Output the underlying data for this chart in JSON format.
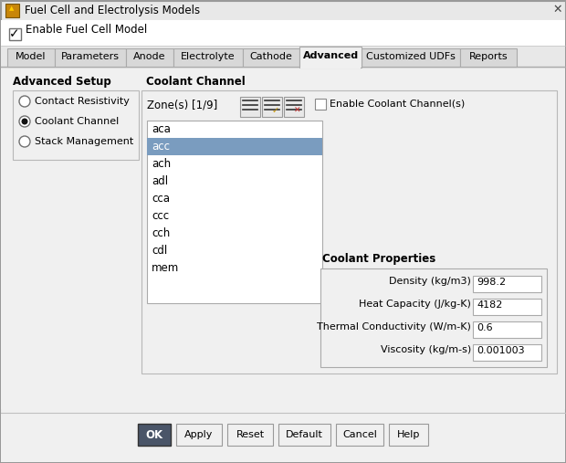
{
  "title": "Fuel Cell and Electrolysis Models",
  "bg_color": "#f0f0f0",
  "tab_names": [
    "Model",
    "Parameters",
    "Anode",
    "Electrolyte",
    "Cathode",
    "Advanced",
    "Customized UDFs",
    "Reports"
  ],
  "active_tab": "Advanced",
  "enable_fuel_cell_label": "Enable Fuel Cell Model",
  "advanced_setup_label": "Advanced Setup",
  "radio_options": [
    "Contact Resistivity",
    "Coolant Channel",
    "Stack Management"
  ],
  "selected_radio": 1,
  "coolant_channel_label": "Coolant Channel",
  "zone_label": "Zone(s) [1/9]",
  "enable_coolant_label": "Enable Coolant Channel(s)",
  "zone_list": [
    "aca",
    "acc",
    "ach",
    "adl",
    "cca",
    "ccc",
    "cch",
    "cdl",
    "mem"
  ],
  "selected_zone": "acc",
  "coolant_props_label": "Coolant Properties",
  "properties": [
    {
      "label": "Density (kg/m3)",
      "value": "998.2"
    },
    {
      "label": "Heat Capacity (J/kg-K)",
      "value": "4182"
    },
    {
      "label": "Thermal Conductivity (W/m-K)",
      "value": "0.6"
    },
    {
      "label": "Viscosity (kg/m-s)",
      "value": "0.001003"
    }
  ],
  "buttons": [
    "OK",
    "Apply",
    "Reset",
    "Default",
    "Cancel",
    "Help"
  ],
  "ok_bg": "#4a5568",
  "ok_fg": "#ffffff",
  "list_selected_bg": "#7a9cbf",
  "tab_active_bg": "#f0f0f0",
  "tab_inactive_bg": "#d8d8d8",
  "icon_orange": "#c8860a",
  "check_gold": "#cc9900",
  "x_red": "#cc3333"
}
